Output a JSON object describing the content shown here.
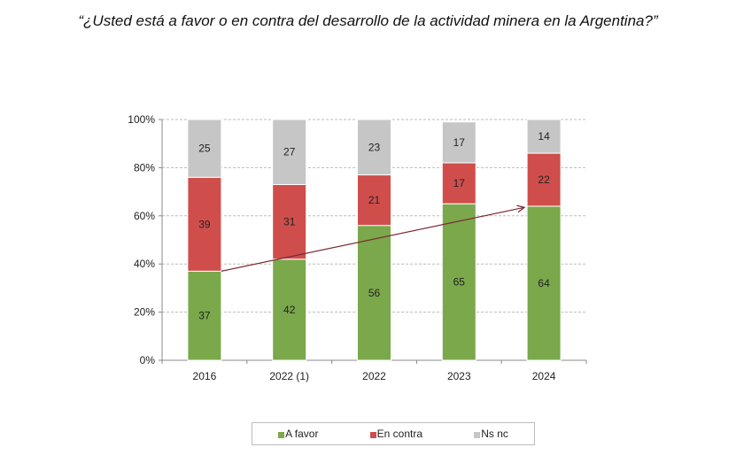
{
  "title": "“¿Usted está a favor o en contra del desarrollo de la actividad minera en la Argentina?”",
  "chart_data": {
    "type": "bar",
    "stacked": true,
    "categories": [
      "2016",
      "2022 (1)",
      "2022",
      "2023",
      "2024"
    ],
    "series": [
      {
        "name": "A favor",
        "color": "#7aa84a",
        "values": [
          37,
          42,
          56,
          65,
          64
        ]
      },
      {
        "name": "En contra",
        "color": "#cf4e4b",
        "values": [
          39,
          31,
          21,
          17,
          22
        ]
      },
      {
        "name": "Ns nc",
        "color": "#c6c6c6",
        "values": [
          25,
          27,
          23,
          17,
          14
        ]
      }
    ],
    "ylim": [
      0,
      100
    ],
    "yticks": [
      "0%",
      "20%",
      "40%",
      "60%",
      "80%",
      "100%"
    ],
    "grid": true,
    "legend": "bottom",
    "annotation": "trend arrow rising from 2016 to 2024",
    "arrow_color": "#7a2a35"
  }
}
